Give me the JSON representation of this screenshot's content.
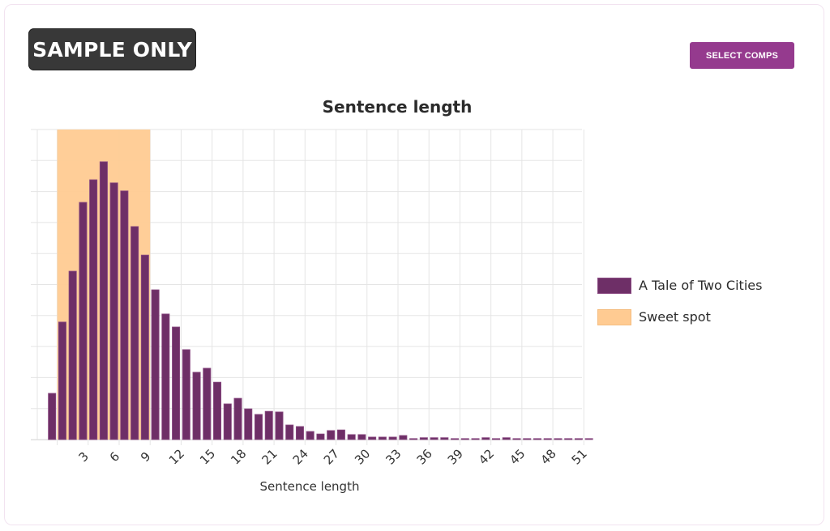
{
  "badge": {
    "label": "SAMPLE ONLY"
  },
  "toolbar": {
    "select_comps_label": "SELECT COMPS"
  },
  "colors": {
    "bar": "#6e2f67",
    "bar_border": "#8a4a82",
    "sweet_spot": "#ffcb92",
    "button": "#953a8e",
    "badge": "#383838",
    "grid": "#e5e5e5"
  },
  "chart_data": {
    "type": "bar",
    "title": "Sentence length",
    "xlabel": "Sentence length",
    "ylabel": "",
    "y_tick_labels_visible": false,
    "grid": true,
    "legend_position": "right",
    "legend": [
      {
        "label": "A Tale of Two Cities",
        "color": "#6e2f67"
      },
      {
        "label": "Sweet spot",
        "color": "#ffcb92"
      }
    ],
    "x_tick_labels": [
      "3",
      "6",
      "9",
      "12",
      "15",
      "18",
      "21",
      "24",
      "27",
      "30",
      "33",
      "36",
      "39",
      "42",
      "45",
      "48",
      "51"
    ],
    "categories": [
      0,
      1,
      2,
      3,
      4,
      5,
      6,
      7,
      8,
      9,
      10,
      11,
      12,
      13,
      14,
      15,
      16,
      17,
      18,
      19,
      20,
      21,
      22,
      23,
      24,
      25,
      26,
      27,
      28,
      29,
      30,
      31,
      32,
      33,
      34,
      35,
      36,
      37,
      38,
      39,
      40,
      41,
      42,
      43,
      44,
      45,
      46,
      47,
      48,
      49,
      50,
      51,
      52
    ],
    "series": [
      {
        "name": "A Tale of Two Cities",
        "values": [
          1.49,
          3.79,
          5.43,
          7.65,
          8.38,
          8.96,
          8.28,
          8.02,
          6.87,
          5.95,
          4.83,
          4.05,
          3.63,
          2.9,
          2.17,
          2.3,
          1.85,
          1.15,
          1.33,
          0.99,
          0.81,
          0.91,
          0.89,
          0.47,
          0.42,
          0.26,
          0.18,
          0.29,
          0.31,
          0.16,
          0.16,
          0.08,
          0.08,
          0.08,
          0.13,
          0.02,
          0.06,
          0.06,
          0.06,
          0.03,
          0.02,
          0.03,
          0.06,
          0.02,
          0.06,
          0.02,
          0.02,
          0.02,
          0.02,
          0.02,
          0.02,
          0.02,
          0.02
        ]
      }
    ],
    "sweet_spot_range": [
      1,
      9
    ],
    "ylim": [
      0,
      10
    ],
    "units": "relative grid units (no y-axis labels shown)"
  }
}
